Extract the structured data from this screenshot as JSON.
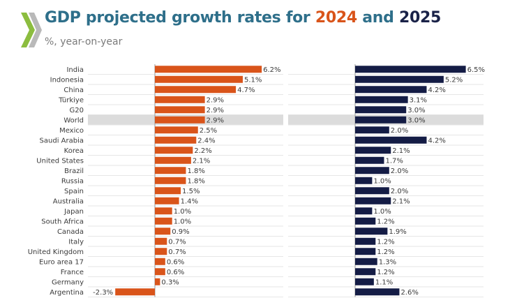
{
  "header": {
    "title_main": "GDP projected growth rates for",
    "title_year1": "2024",
    "title_and": "and",
    "title_year2": "2025",
    "subtitle": "%, year-on-year"
  },
  "colors": {
    "series_2024": "#d9541a",
    "series_2025": "#141c45",
    "highlight": "#dcdcdc",
    "title_blue": "#2e6f8a",
    "logo_green": "#8cbd3f"
  },
  "chart_data": {
    "type": "bar",
    "orientation": "horizontal",
    "title": "GDP projected growth rates for 2024 and 2025",
    "subtitle": "%, year-on-year",
    "highlighted_category": "World",
    "categories": [
      "India",
      "Indonesia",
      "China",
      "Türkiye",
      "G20",
      "World",
      "Mexico",
      "Saudi Arabia",
      "Korea",
      "United States",
      "Brazil",
      "Russia",
      "Spain",
      "Australia",
      "Japan",
      "South Africa",
      "Canada",
      "Italy",
      "United Kingdom",
      "Euro area 17",
      "France",
      "Germany",
      "Argentina"
    ],
    "series": [
      {
        "name": "2024",
        "values": [
          6.2,
          5.1,
          4.7,
          2.9,
          2.9,
          2.9,
          2.5,
          2.4,
          2.2,
          2.1,
          1.8,
          1.8,
          1.5,
          1.4,
          1.0,
          1.0,
          0.9,
          0.7,
          0.7,
          0.6,
          0.6,
          0.3,
          -2.3
        ],
        "labels": [
          "6.2%",
          "5.1%",
          "4.7%",
          "2.9%",
          "2.9%",
          "2.9%",
          "2.5%",
          "2.4%",
          "2.2%",
          "2.1%",
          "1.8%",
          "1.8%",
          "1.5%",
          "1.4%",
          "1.0%",
          "1.0%",
          "0.9%",
          "0.7%",
          "0.7%",
          "0.6%",
          "0.6%",
          "0.3%",
          "-2.3%"
        ]
      },
      {
        "name": "2025",
        "values": [
          6.5,
          5.2,
          4.2,
          3.1,
          3.0,
          3.0,
          2.0,
          4.2,
          2.1,
          1.7,
          2.0,
          1.0,
          2.0,
          2.1,
          1.0,
          1.2,
          1.9,
          1.2,
          1.2,
          1.3,
          1.2,
          1.1,
          2.6
        ],
        "labels": [
          "6.5%",
          "5.2%",
          "4.2%",
          "3.1%",
          "3.0%",
          "3.0%",
          "2.0%",
          "4.2%",
          "2.1%",
          "1.7%",
          "2.0%",
          "1.0%",
          "2.0%",
          "2.1%",
          "1.0%",
          "1.2%",
          "1.9%",
          "1.2%",
          "1.2%",
          "1.3%",
          "1.2%",
          "1.1%",
          "2.6%"
        ]
      }
    ],
    "grid": true,
    "legend": "title"
  }
}
